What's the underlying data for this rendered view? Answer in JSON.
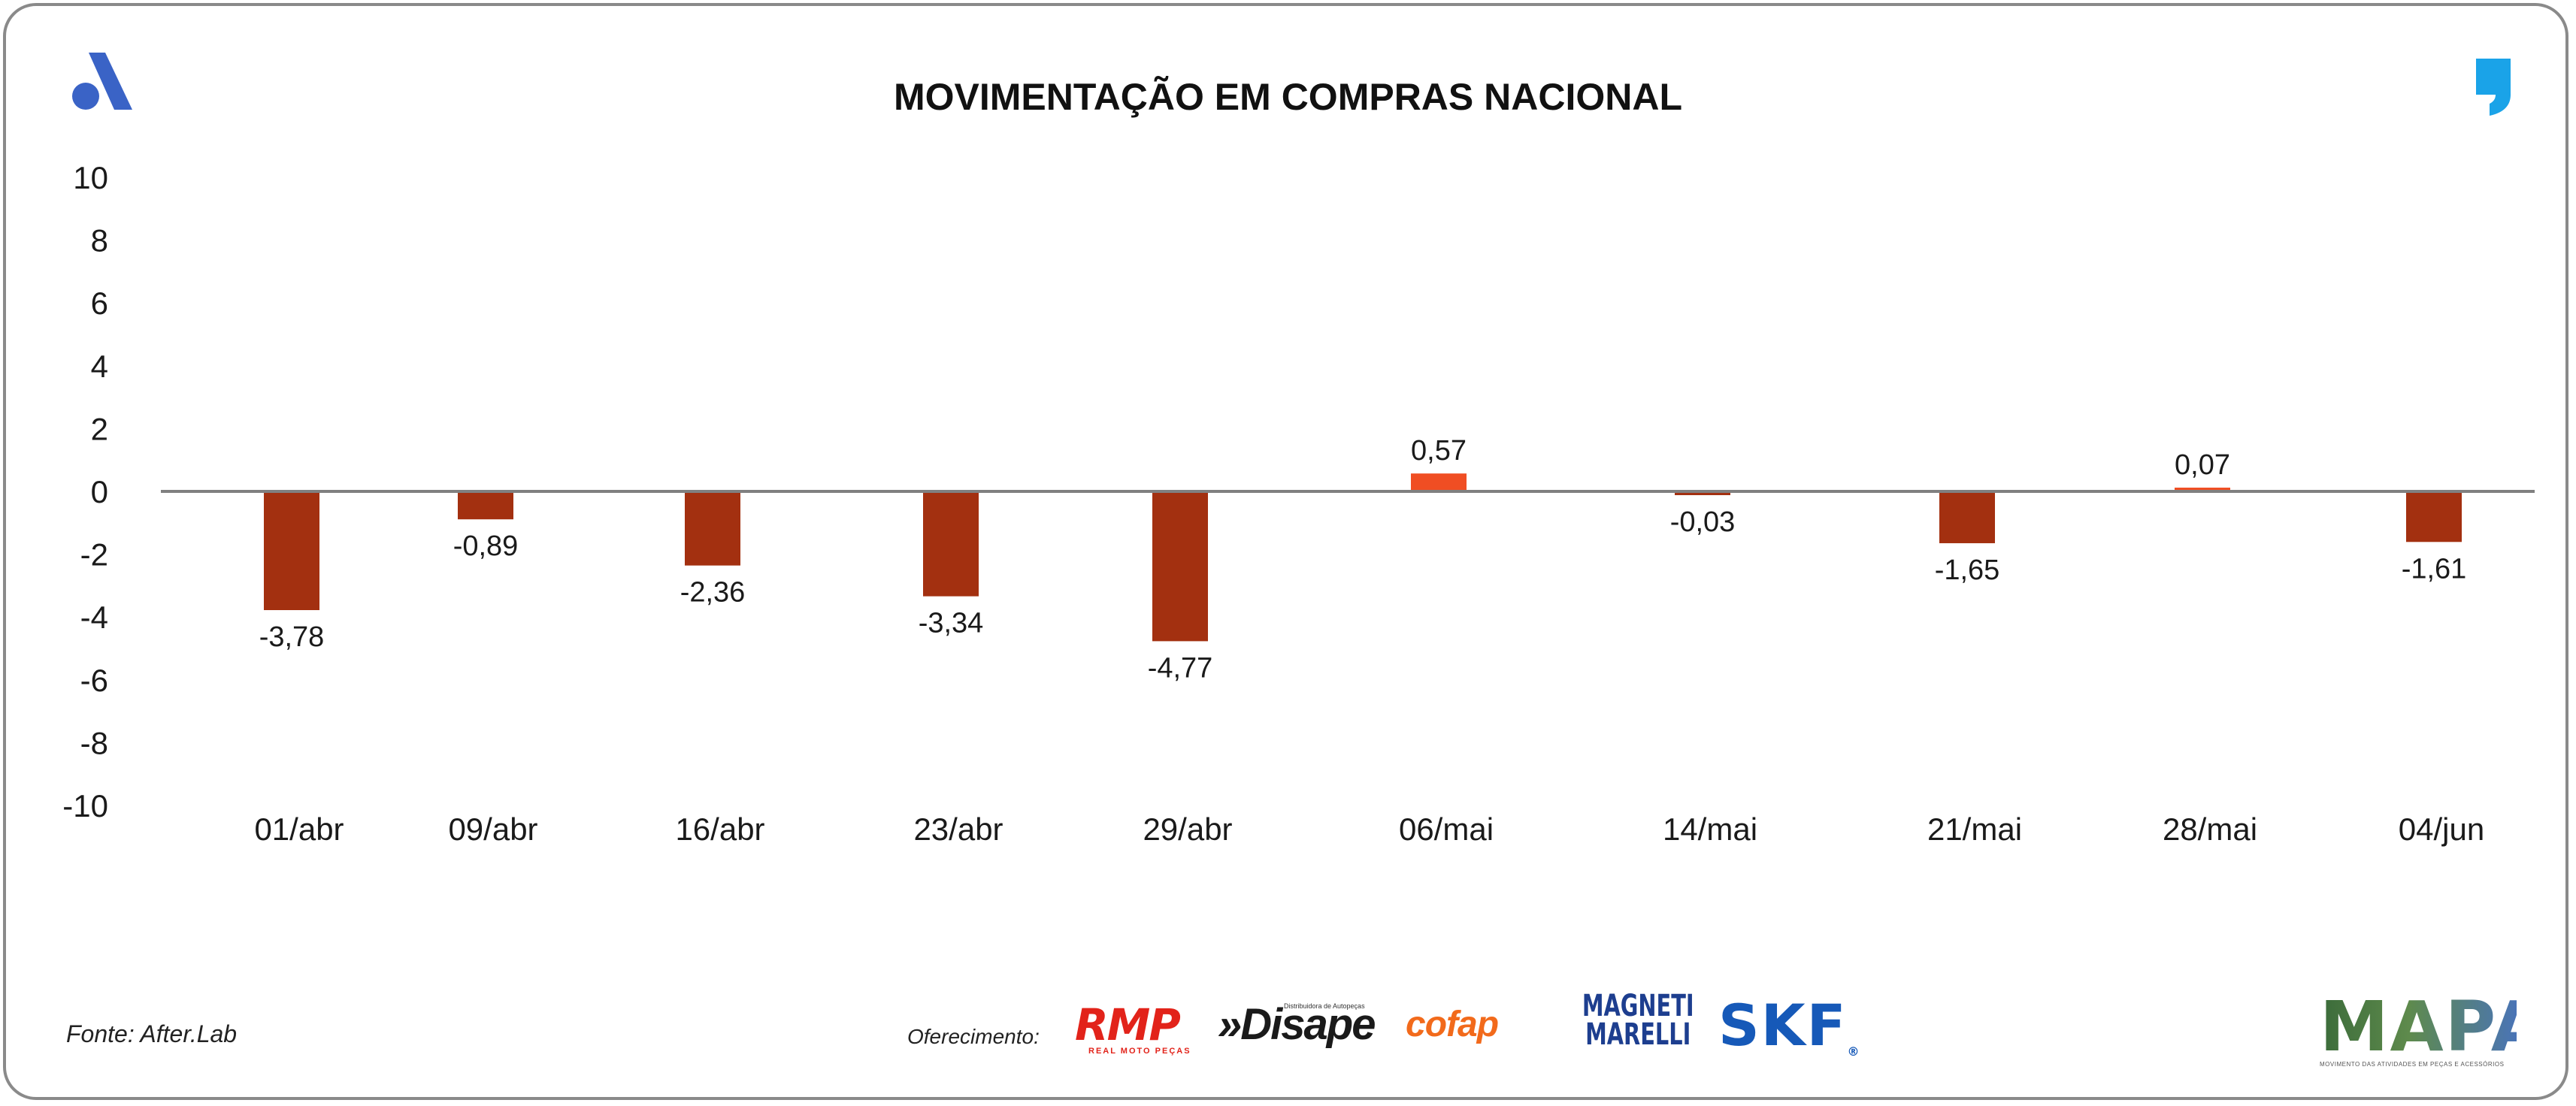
{
  "header": {
    "title": "MOVIMENTAÇÃO EM COMPRAS NACIONAL",
    "logo_icon": "after-logo-icon",
    "quote_icon": "quote-mark-icon"
  },
  "footer": {
    "source": "Fonte: After.Lab",
    "sponsor_label": "Oferecimento:",
    "sponsors": {
      "rmp": "RMP",
      "rmp_tagline": "REAL MOTO PEÇAS",
      "disape": "»Disape",
      "disape_tagline": "Distribuidora de Autopeças",
      "cofap": "cofap",
      "magneti_line1": "MAGNETI",
      "magneti_line2": "MARELLI",
      "skf": "SKF",
      "skf_reg": "®"
    },
    "mapa": "MAPA",
    "mapa_tagline": "MOVIMENTO DAS ATIVIDADES EM PEÇAS E ACESSÓRIOS"
  },
  "colors": {
    "negative_bar": "#a33010",
    "positive_bar": "#f04e23",
    "zero_line": "#808080",
    "text": "#1a1a1a",
    "brand_blue": "#3a63c6",
    "brand_cyan": "#1aa3e8"
  },
  "chart_data": {
    "type": "bar",
    "title": "MOVIMENTAÇÃO EM COMPRAS NACIONAL",
    "categories": [
      "01/abr",
      "09/abr",
      "16/abr",
      "23/abr",
      "29/abr",
      "06/mai",
      "14/mai",
      "21/mai",
      "28/mai",
      "04/jun"
    ],
    "values": [
      -3.78,
      -0.89,
      -2.36,
      -3.34,
      -4.77,
      0.57,
      -0.03,
      -1.65,
      0.07,
      -1.61
    ],
    "value_labels": [
      "-3,78",
      "-0,89",
      "-2,36",
      "-3,34",
      "-4,77",
      "0,57",
      "-0,03",
      "-1,65",
      "0,07",
      "-1,61"
    ],
    "y_ticks": [
      10,
      8,
      6,
      4,
      2,
      0,
      -2,
      -4,
      -6,
      -8,
      -10
    ],
    "ylim": [
      -10,
      10
    ],
    "xlabel": "",
    "ylabel": "",
    "grid": false,
    "legend": "none"
  }
}
